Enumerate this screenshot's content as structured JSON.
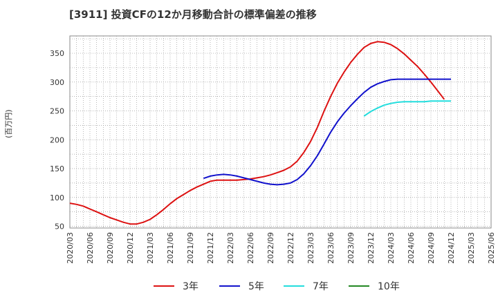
{
  "chart_data": {
    "type": "line",
    "title": "[3911]  投資CFの12か月移動合計の標準偏差の推移",
    "ylabel": "(百万円)",
    "xlabel": "",
    "ylim": [
      47,
      380
    ],
    "yticks": [
      50,
      100,
      150,
      200,
      250,
      300,
      350
    ],
    "xticks": [
      "2020/03",
      "2020/06",
      "2020/09",
      "2020/12",
      "2021/03",
      "2021/06",
      "2021/09",
      "2021/12",
      "2022/03",
      "2022/06",
      "2022/09",
      "2022/12",
      "2023/03",
      "2023/06",
      "2023/09",
      "2023/12",
      "2024/03",
      "2024/06",
      "2024/09",
      "2024/12",
      "2025/03",
      "2025/06"
    ],
    "grid": true,
    "legend_position": "bottom",
    "series": [
      {
        "name": "3年",
        "color": "#dd1111",
        "x": [
          "2020/03",
          "2020/04",
          "2020/05",
          "2020/06",
          "2020/07",
          "2020/08",
          "2020/09",
          "2020/10",
          "2020/11",
          "2020/12",
          "2021/01",
          "2021/02",
          "2021/03",
          "2021/04",
          "2021/05",
          "2021/06",
          "2021/07",
          "2021/08",
          "2021/09",
          "2021/10",
          "2021/11",
          "2021/12",
          "2022/01",
          "2022/02",
          "2022/03",
          "2022/04",
          "2022/05",
          "2022/06",
          "2022/07",
          "2022/08",
          "2022/09",
          "2022/10",
          "2022/11",
          "2022/12",
          "2023/01",
          "2023/02",
          "2023/03",
          "2023/04",
          "2023/05",
          "2023/06",
          "2023/07",
          "2023/08",
          "2023/09",
          "2023/10",
          "2023/11",
          "2023/12",
          "2024/01",
          "2024/02",
          "2024/03",
          "2024/04",
          "2024/05",
          "2024/06",
          "2024/07",
          "2024/08",
          "2024/09",
          "2024/10",
          "2024/11",
          "2024/12"
        ],
        "values": [
          90,
          88,
          85,
          80,
          75,
          70,
          65,
          61,
          57,
          54,
          54,
          57,
          62,
          70,
          79,
          89,
          98,
          105,
          112,
          118,
          123,
          128,
          130,
          130,
          130,
          130,
          131,
          132,
          134,
          136,
          139,
          143,
          147,
          153,
          163,
          178,
          197,
          221,
          249,
          275,
          298,
          317,
          334,
          348,
          360,
          367,
          370,
          369,
          365,
          358,
          349,
          338,
          327,
          314,
          300,
          285,
          270,
          null
        ]
      },
      {
        "name": "5年",
        "color": "#1111cc",
        "x": [
          "2021/11",
          "2021/12",
          "2022/01",
          "2022/02",
          "2022/03",
          "2022/04",
          "2022/05",
          "2022/06",
          "2022/07",
          "2022/08",
          "2022/09",
          "2022/10",
          "2022/11",
          "2022/12",
          "2023/01",
          "2023/02",
          "2023/03",
          "2023/04",
          "2023/05",
          "2023/06",
          "2023/07",
          "2023/08",
          "2023/09",
          "2023/10",
          "2023/11",
          "2023/12",
          "2024/01",
          "2024/02",
          "2024/03",
          "2024/04",
          "2024/05",
          "2024/06",
          "2024/07",
          "2024/08",
          "2024/09",
          "2024/10",
          "2024/11",
          "2024/12"
        ],
        "values": [
          133,
          137,
          139,
          140,
          139,
          137,
          134,
          131,
          128,
          125,
          123,
          122,
          123,
          125,
          131,
          141,
          155,
          172,
          192,
          213,
          231,
          246,
          259,
          271,
          282,
          291,
          297,
          301,
          304,
          305,
          305,
          305,
          305,
          305,
          305,
          305,
          305,
          305
        ]
      },
      {
        "name": "7年",
        "color": "#22dddd",
        "x": [
          "2023/11",
          "2023/12",
          "2024/01",
          "2024/02",
          "2024/03",
          "2024/04",
          "2024/05",
          "2024/06",
          "2024/07",
          "2024/08",
          "2024/09",
          "2024/10",
          "2024/11",
          "2024/12"
        ],
        "values": [
          241,
          249,
          255,
          260,
          263,
          265,
          266,
          266,
          266,
          266,
          267,
          267,
          267,
          267
        ]
      },
      {
        "name": "10年",
        "color": "#228822",
        "x": [],
        "values": []
      }
    ]
  }
}
